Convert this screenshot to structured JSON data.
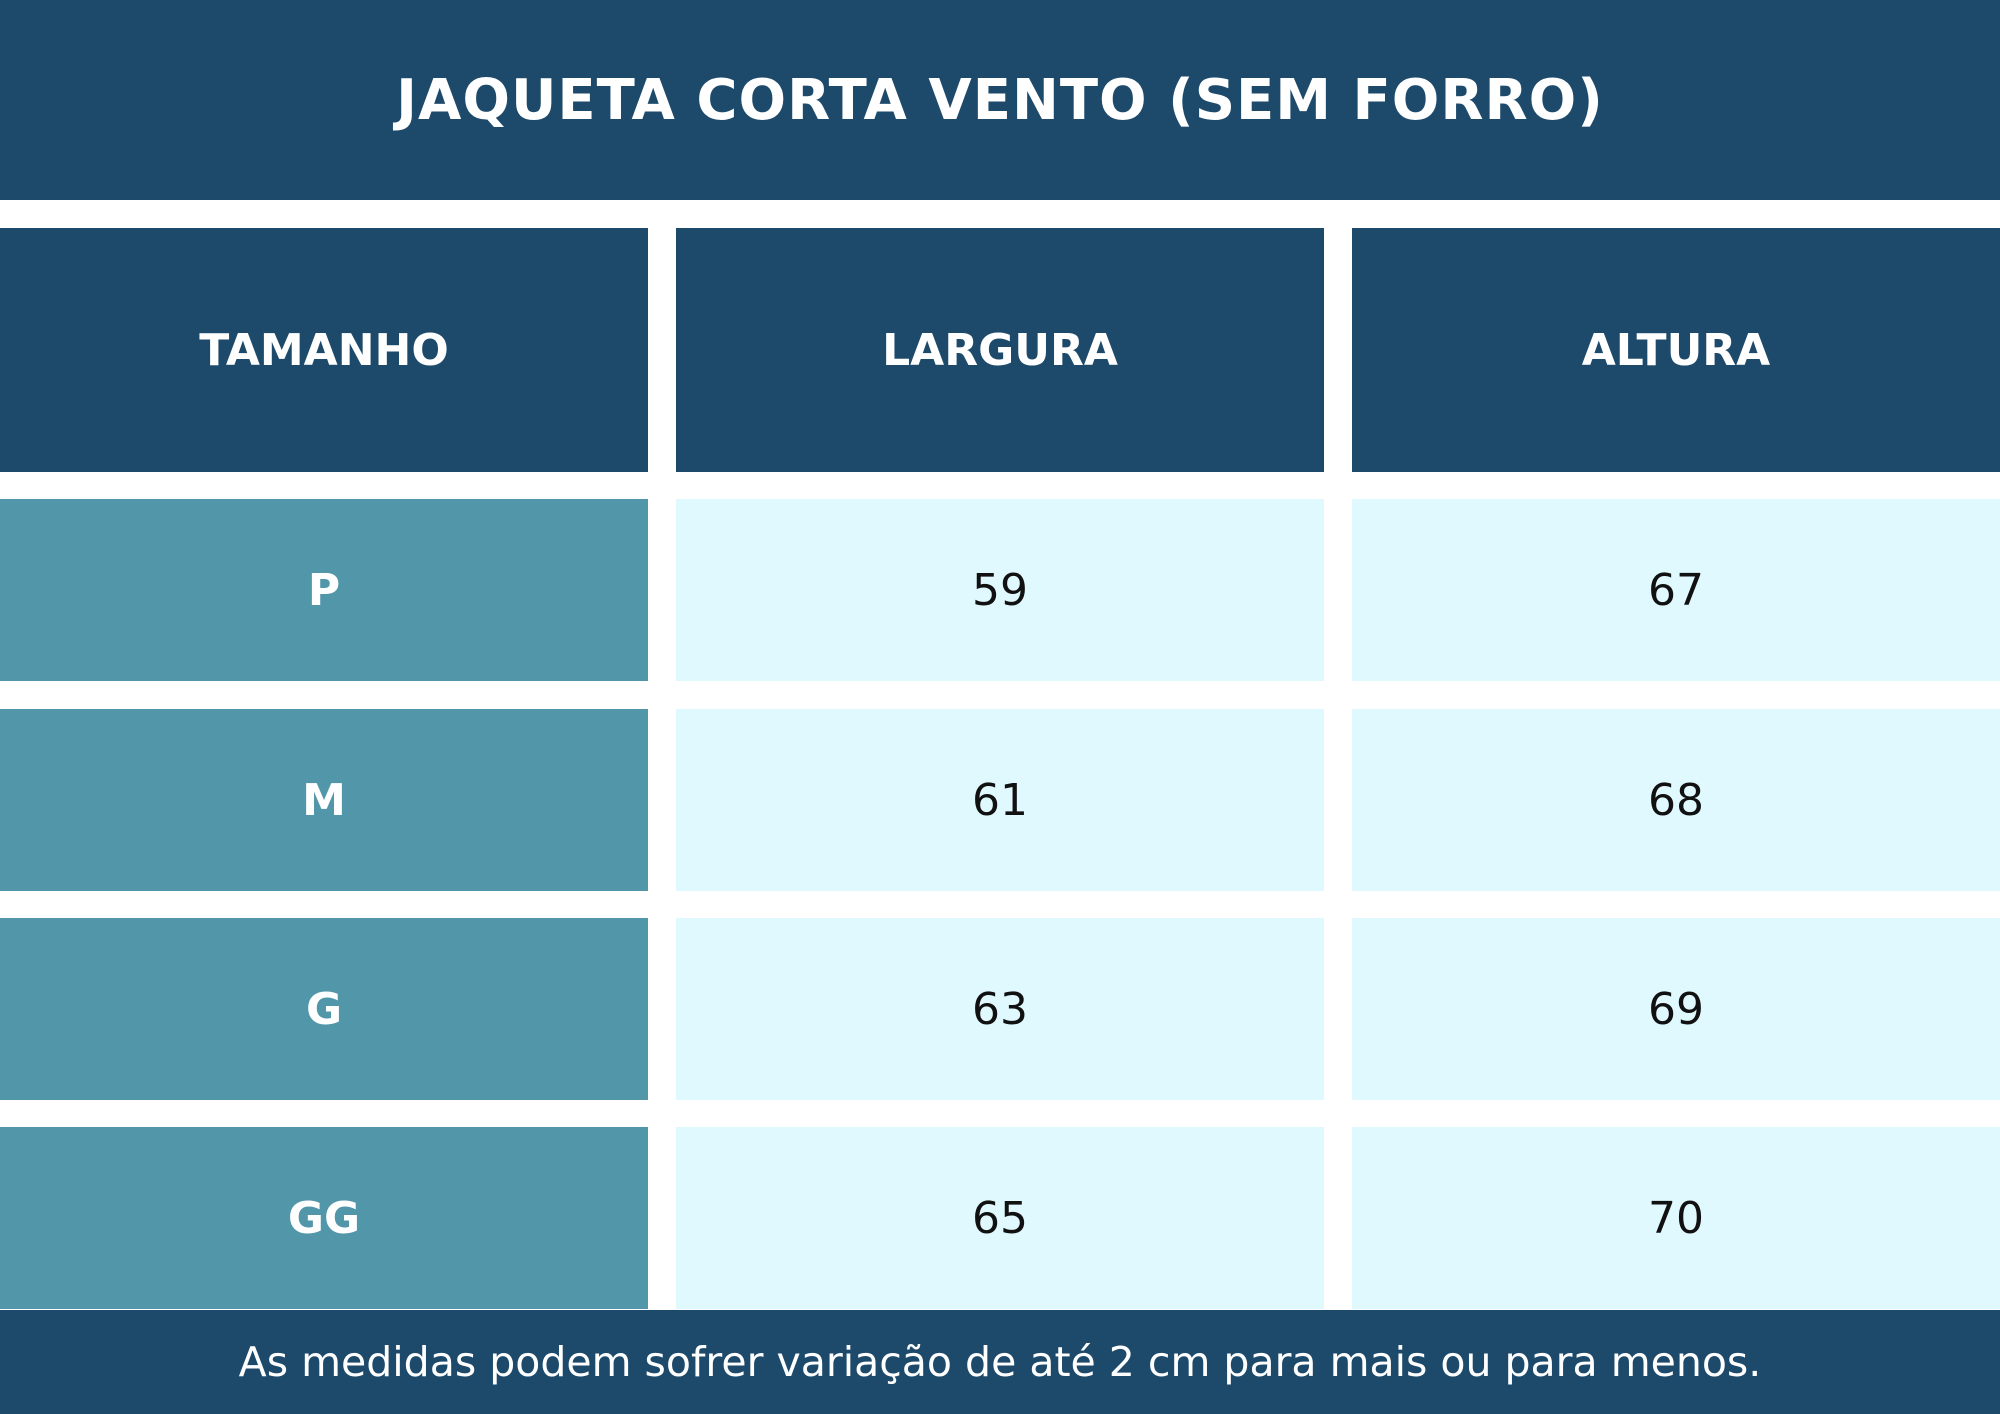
{
  "title": "JAQUETA CORTA VENTO (SEM FORRO)",
  "table": {
    "headers": [
      "TAMANHO",
      "LARGURA",
      "ALTURA"
    ],
    "rows": [
      {
        "size": "P",
        "largura": "59",
        "altura": "67"
      },
      {
        "size": "M",
        "largura": "61",
        "altura": "68"
      },
      {
        "size": "G",
        "largura": "63",
        "altura": "69"
      },
      {
        "size": "GG",
        "largura": "65",
        "altura": "70"
      }
    ]
  },
  "footer": "As medidas podem sofrer variação de até 2 cm para mais ou para menos.",
  "colors": {
    "dark_blue": "#1d4a6b",
    "teal": "#5196a9",
    "light_cyan": "#e0f9fe"
  }
}
